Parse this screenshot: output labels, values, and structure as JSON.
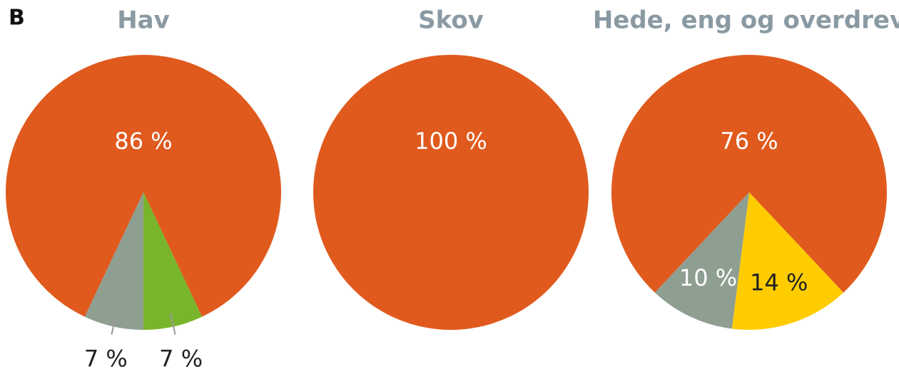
{
  "panel": "B",
  "chart_data": [
    {
      "type": "pie",
      "title": "Hav",
      "values": [
        86,
        7,
        7
      ],
      "value_labels": [
        "86 %",
        "7 %",
        "7 %"
      ],
      "colors": [
        "#e05a1e",
        "#78b52a",
        "#8e9e91"
      ]
    },
    {
      "type": "pie",
      "title": "Skov",
      "values": [
        100
      ],
      "value_labels": [
        "100 %"
      ],
      "colors": [
        "#e05a1e"
      ]
    },
    {
      "type": "pie",
      "title": "Hede, eng og overdrev",
      "values": [
        76,
        14,
        10
      ],
      "value_labels": [
        "76 %",
        "14 %",
        "10 %"
      ],
      "colors": [
        "#e05a1e",
        "#ffcc00",
        "#8e9e91"
      ]
    }
  ]
}
